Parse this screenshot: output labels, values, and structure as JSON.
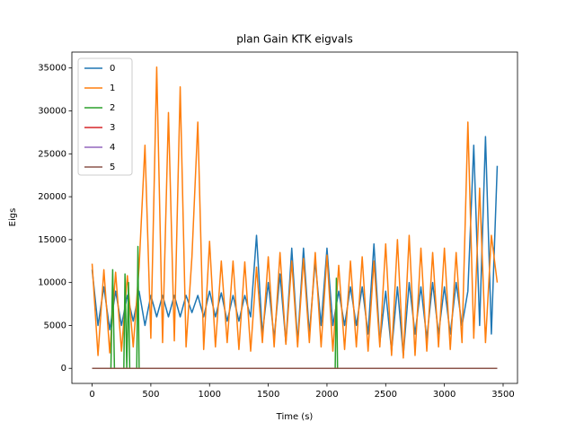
{
  "chart_data": {
    "type": "line",
    "title": "plan Gain KTK eigvals",
    "xlabel": "Time (s)",
    "ylabel": "Eigs",
    "xlim": [
      -172.5,
      3622.5
    ],
    "ylim": [
      -1755,
      36855
    ],
    "xticks": [
      0,
      500,
      1000,
      1500,
      2000,
      2500,
      3000,
      3500
    ],
    "yticks": [
      0,
      5000,
      10000,
      15000,
      20000,
      25000,
      30000,
      35000
    ],
    "legend": "upper left",
    "series": [
      {
        "name": "0",
        "color": "#1f77b4",
        "x": [
          0,
          50,
          100,
          150,
          200,
          250,
          300,
          350,
          400,
          450,
          500,
          550,
          600,
          650,
          700,
          750,
          800,
          850,
          900,
          950,
          1000,
          1050,
          1100,
          1150,
          1200,
          1250,
          1300,
          1350,
          1400,
          1450,
          1500,
          1550,
          1600,
          1650,
          1700,
          1750,
          1800,
          1850,
          1900,
          1950,
          2000,
          2050,
          2100,
          2150,
          2200,
          2250,
          2300,
          2350,
          2400,
          2450,
          2500,
          2550,
          2600,
          2650,
          2700,
          2750,
          2800,
          2850,
          2900,
          2950,
          3000,
          3050,
          3100,
          3150,
          3200,
          3250,
          3300,
          3350,
          3400,
          3450
        ],
        "values": [
          11500,
          5000,
          9500,
          4500,
          9000,
          5000,
          8500,
          5500,
          9000,
          5000,
          8500,
          6000,
          8500,
          6000,
          8500,
          6000,
          8500,
          6500,
          8500,
          6000,
          9000,
          6000,
          8800,
          5500,
          8500,
          5500,
          8500,
          6000,
          15500,
          4000,
          10000,
          3500,
          11000,
          3000,
          14000,
          3000,
          14000,
          4000,
          12500,
          5000,
          14000,
          5000,
          9000,
          5000,
          9500,
          5000,
          9500,
          4000,
          14500,
          3000,
          9000,
          2000,
          9500,
          1500,
          10000,
          4000,
          9500,
          3500,
          10000,
          4000,
          9500,
          4000,
          10000,
          5000,
          9000,
          26000,
          5000,
          27000,
          4000,
          23600
        ]
      },
      {
        "name": "1",
        "color": "#ff7f0e",
        "x": [
          0,
          50,
          100,
          150,
          200,
          250,
          300,
          350,
          400,
          450,
          500,
          550,
          600,
          650,
          700,
          750,
          800,
          850,
          900,
          950,
          1000,
          1050,
          1100,
          1150,
          1200,
          1250,
          1300,
          1350,
          1400,
          1450,
          1500,
          1550,
          1600,
          1650,
          1700,
          1750,
          1800,
          1850,
          1900,
          1950,
          2000,
          2050,
          2100,
          2150,
          2200,
          2250,
          2300,
          2350,
          2400,
          2450,
          2500,
          2550,
          2600,
          2650,
          2700,
          2750,
          2800,
          2850,
          2900,
          2950,
          3000,
          3050,
          3100,
          3150,
          3200,
          3250,
          3300,
          3350,
          3400,
          3450
        ],
        "values": [
          12200,
          1500,
          11500,
          1800,
          11200,
          2000,
          10800,
          2500,
          11800,
          26000,
          3500,
          35100,
          3000,
          29800,
          3200,
          32800,
          2500,
          13000,
          28700,
          2200,
          14800,
          2500,
          12500,
          3000,
          12500,
          2200,
          12400,
          2000,
          11800,
          3000,
          13000,
          2500,
          13500,
          2800,
          12500,
          2500,
          12800,
          3000,
          13500,
          2500,
          13200,
          2000,
          12000,
          2200,
          12500,
          2500,
          13000,
          2000,
          12500,
          2500,
          14500,
          1500,
          15000,
          1200,
          15500,
          1500,
          14000,
          2000,
          13500,
          2500,
          14000,
          2200,
          13500,
          3000,
          28700,
          3500,
          21000,
          3000,
          15500,
          10000
        ]
      },
      {
        "name": "2",
        "color": "#2ca02c",
        "x": [
          0,
          160,
          175,
          190,
          270,
          280,
          295,
          310,
          320,
          380,
          390,
          400,
          2070,
          2080,
          2090,
          3450
        ],
        "values": [
          0,
          0,
          11500,
          0,
          0,
          11000,
          0,
          10000,
          0,
          0,
          14200,
          0,
          0,
          10500,
          0,
          0
        ]
      },
      {
        "name": "3",
        "color": "#d62728",
        "x": [
          0,
          3450
        ],
        "values": [
          0,
          0
        ]
      },
      {
        "name": "4",
        "color": "#9467bd",
        "x": [
          0,
          3450
        ],
        "values": [
          0,
          0
        ]
      },
      {
        "name": "5",
        "color": "#8c564b",
        "x": [
          0,
          3450
        ],
        "values": [
          0,
          0
        ]
      }
    ]
  }
}
